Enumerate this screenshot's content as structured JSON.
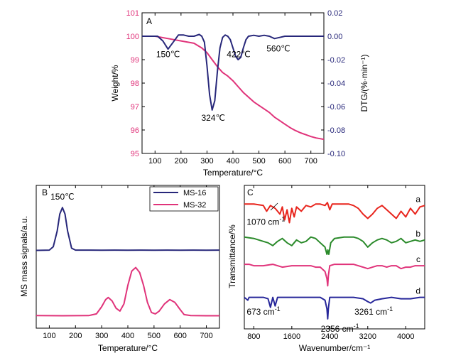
{
  "figure": {
    "colors": {
      "magenta": "#e0337a",
      "navy": "#27277a",
      "red": "#e8241c",
      "green": "#2a8a2a",
      "pink": "#e0337a",
      "blue": "#27279a",
      "axis": "#000000"
    }
  },
  "chart_data": [
    {
      "id": "A",
      "type": "line",
      "panel_label": "A",
      "xlabel": "Temperature/°C",
      "ylabel_left": "Weight/%",
      "ylabel_right": "DTG/(%·min⁻¹)",
      "xlim": [
        50,
        750
      ],
      "ylim_left": [
        95,
        101
      ],
      "ylim_right": [
        -0.1,
        0.02
      ],
      "xticks": [
        {
          "v": 100,
          "label": "100"
        },
        {
          "v": 200,
          "label": "200"
        },
        {
          "v": 300,
          "label": "300"
        },
        {
          "v": 400,
          "label": "400"
        },
        {
          "v": 500,
          "label": "500"
        },
        {
          "v": 600,
          "label": "600"
        },
        {
          "v": 700,
          "label": "700"
        }
      ],
      "yticks_left": [
        {
          "v": 95,
          "label": "95"
        },
        {
          "v": 96,
          "label": "96"
        },
        {
          "v": 97,
          "label": "97"
        },
        {
          "v": 98,
          "label": "98"
        },
        {
          "v": 99,
          "label": "99"
        },
        {
          "v": 100,
          "label": "100"
        },
        {
          "v": 101,
          "label": "101"
        }
      ],
      "yticks_right": [
        {
          "v": 0.02,
          "label": "0.02"
        },
        {
          "v": 0.0,
          "label": "0.00"
        },
        {
          "v": -0.02,
          "label": "-0.02"
        },
        {
          "v": -0.04,
          "label": "-0.04"
        },
        {
          "v": -0.06,
          "label": "-0.06"
        },
        {
          "v": -0.08,
          "label": "-0.08"
        },
        {
          "v": -0.1,
          "label": "-0.10"
        }
      ],
      "series": [
        {
          "axis": "left",
          "color": "#e0337a",
          "x": [
            50,
            100,
            150,
            200,
            250,
            280,
            300,
            320,
            340,
            360,
            380,
            400,
            420,
            440,
            460,
            480,
            500,
            520,
            540,
            560,
            580,
            600,
            620,
            640,
            660,
            680,
            700,
            720,
            750
          ],
          "y": [
            100.0,
            100.0,
            99.9,
            99.8,
            99.7,
            99.5,
            99.3,
            99.0,
            98.7,
            98.45,
            98.3,
            98.1,
            97.85,
            97.6,
            97.4,
            97.2,
            97.05,
            96.9,
            96.75,
            96.55,
            96.4,
            96.25,
            96.1,
            95.98,
            95.88,
            95.8,
            95.72,
            95.66,
            95.6
          ]
        },
        {
          "axis": "right",
          "color": "#27277a",
          "x": [
            50,
            80,
            110,
            130,
            150,
            170,
            190,
            210,
            230,
            250,
            270,
            280,
            290,
            300,
            310,
            320,
            330,
            340,
            350,
            360,
            370,
            380,
            390,
            400,
            410,
            420,
            430,
            440,
            450,
            460,
            480,
            500,
            520,
            540,
            560,
            580,
            600,
            640,
            680,
            720,
            750
          ],
          "y": [
            0.0,
            0.0,
            0.0,
            -0.004,
            -0.011,
            -0.005,
            0.001,
            0.001,
            0.0,
            0.0,
            0.0015,
            0.0,
            -0.005,
            -0.025,
            -0.05,
            -0.063,
            -0.055,
            -0.03,
            -0.01,
            -0.001,
            0.001,
            0.0,
            -0.003,
            -0.01,
            -0.017,
            -0.02,
            -0.018,
            -0.01,
            -0.003,
            0.0,
            0.0008,
            0.0,
            0.0008,
            0.0,
            -0.002,
            -0.001,
            0.0,
            0.0,
            0.0,
            0.0,
            0.0
          ]
        }
      ],
      "annotations": [
        {
          "text": "150℃",
          "x": 150,
          "y": -0.018
        },
        {
          "text": "324℃",
          "x": 324,
          "y": -0.072
        },
        {
          "text": "422℃",
          "x": 422,
          "y": -0.018
        },
        {
          "text": "560℃",
          "x": 575,
          "y": -0.013
        }
      ]
    },
    {
      "id": "B",
      "type": "line",
      "panel_label": "B",
      "xlabel": "Temperature/°C",
      "ylabel": "MS mass signals/a.u.",
      "xlim": [
        50,
        750
      ],
      "ylim": [
        0,
        1
      ],
      "xticks": [
        {
          "v": 100,
          "label": "100"
        },
        {
          "v": 200,
          "label": "200"
        },
        {
          "v": 300,
          "label": "300"
        },
        {
          "v": 400,
          "label": "400"
        },
        {
          "v": 500,
          "label": "500"
        },
        {
          "v": 600,
          "label": "600"
        },
        {
          "v": 700,
          "label": "700"
        }
      ],
      "legend": {
        "position": "top-right"
      },
      "series": [
        {
          "name": "MS-16",
          "color": "#27277a",
          "x": [
            50,
            100,
            115,
            130,
            140,
            150,
            160,
            170,
            185,
            200,
            250,
            300,
            350,
            400,
            450,
            500,
            550,
            600,
            650,
            700,
            750
          ],
          "y": [
            0.545,
            0.547,
            0.57,
            0.68,
            0.8,
            0.845,
            0.8,
            0.68,
            0.56,
            0.547,
            0.547,
            0.546,
            0.547,
            0.546,
            0.547,
            0.546,
            0.547,
            0.546,
            0.547,
            0.546,
            0.547
          ]
        },
        {
          "name": "MS-32",
          "color": "#e0337a",
          "x": [
            50,
            150,
            250,
            280,
            300,
            315,
            325,
            340,
            355,
            370,
            385,
            400,
            415,
            430,
            445,
            460,
            475,
            490,
            505,
            520,
            540,
            560,
            580,
            600,
            615,
            640,
            700,
            750
          ],
          "y": [
            0.088,
            0.087,
            0.088,
            0.1,
            0.15,
            0.2,
            0.215,
            0.19,
            0.14,
            0.12,
            0.17,
            0.3,
            0.4,
            0.425,
            0.39,
            0.3,
            0.18,
            0.11,
            0.1,
            0.12,
            0.17,
            0.2,
            0.18,
            0.13,
            0.095,
            0.088,
            0.087,
            0.087
          ]
        }
      ],
      "annotations": [
        {
          "text": "150℃",
          "x": 150,
          "y": 0.9
        }
      ]
    },
    {
      "id": "C",
      "type": "line",
      "panel_label": "C",
      "xlabel": "Wavenumber/cm⁻¹",
      "ylabel": "Transmittance/%",
      "xlim": [
        600,
        4400
      ],
      "ylim": [
        0,
        1
      ],
      "xticks": [
        {
          "v": 800,
          "label": "800"
        },
        {
          "v": 1600,
          "label": "1600"
        },
        {
          "v": 2400,
          "label": "2400"
        },
        {
          "v": 3200,
          "label": "3200"
        },
        {
          "v": 4000,
          "label": "4000"
        }
      ],
      "series": [
        {
          "name": "a",
          "color": "#e8241c",
          "x": [
            600,
            800,
            1000,
            1070,
            1150,
            1250,
            1350,
            1400,
            1450,
            1500,
            1550,
            1600,
            1650,
            1700,
            1800,
            1900,
            2000,
            2100,
            2200,
            2300,
            2350,
            2400,
            2450,
            2500,
            2600,
            2700,
            2800,
            2900,
            3000,
            3100,
            3200,
            3300,
            3400,
            3500,
            3600,
            3700,
            3800,
            3900,
            4000,
            4100,
            4200,
            4300,
            4400
          ],
          "y": [
            0.87,
            0.87,
            0.86,
            0.82,
            0.86,
            0.84,
            0.8,
            0.85,
            0.76,
            0.83,
            0.74,
            0.84,
            0.78,
            0.85,
            0.82,
            0.86,
            0.85,
            0.87,
            0.87,
            0.86,
            0.88,
            0.83,
            0.87,
            0.87,
            0.87,
            0.87,
            0.87,
            0.86,
            0.84,
            0.8,
            0.77,
            0.8,
            0.84,
            0.86,
            0.83,
            0.8,
            0.77,
            0.82,
            0.78,
            0.84,
            0.8,
            0.85,
            0.86
          ]
        },
        {
          "name": "b",
          "color": "#2a8a2a",
          "x": [
            600,
            800,
            1000,
            1100,
            1200,
            1300,
            1400,
            1500,
            1600,
            1700,
            1800,
            1900,
            2000,
            2100,
            2200,
            2300,
            2340,
            2360,
            2380,
            2420,
            2500,
            2700,
            2900,
            3000,
            3100,
            3200,
            3300,
            3400,
            3500,
            3600,
            3700,
            3800,
            3900,
            4000,
            4100,
            4200,
            4300,
            4400
          ],
          "y": [
            0.64,
            0.63,
            0.61,
            0.6,
            0.58,
            0.61,
            0.63,
            0.6,
            0.58,
            0.62,
            0.6,
            0.61,
            0.64,
            0.63,
            0.6,
            0.57,
            0.52,
            0.55,
            0.52,
            0.6,
            0.63,
            0.64,
            0.64,
            0.63,
            0.61,
            0.57,
            0.6,
            0.62,
            0.63,
            0.62,
            0.6,
            0.61,
            0.63,
            0.6,
            0.61,
            0.62,
            0.61,
            0.62
          ]
        },
        {
          "name": "c",
          "color": "#e0337a",
          "x": [
            600,
            700,
            800,
            1000,
            1200,
            1400,
            1600,
            1800,
            2000,
            2100,
            2200,
            2300,
            2340,
            2356,
            2370,
            2400,
            2500,
            2700,
            2900,
            3000,
            3100,
            3200,
            3300,
            3400,
            3500,
            3600,
            3700,
            3800,
            3900,
            4000,
            4100,
            4200,
            4300,
            4400
          ],
          "y": [
            0.45,
            0.45,
            0.44,
            0.44,
            0.45,
            0.43,
            0.44,
            0.44,
            0.44,
            0.43,
            0.43,
            0.4,
            0.35,
            0.3,
            0.37,
            0.44,
            0.45,
            0.45,
            0.45,
            0.44,
            0.43,
            0.42,
            0.43,
            0.44,
            0.44,
            0.43,
            0.44,
            0.44,
            0.42,
            0.43,
            0.43,
            0.44,
            0.44,
            0.44
          ]
        },
        {
          "name": "d",
          "color": "#27279a",
          "x": [
            600,
            673,
            700,
            800,
            900,
            1000,
            1100,
            1150,
            1200,
            1250,
            1300,
            1400,
            1600,
            1800,
            2000,
            2200,
            2300,
            2340,
            2356,
            2370,
            2400,
            2500,
            2700,
            2900,
            3100,
            3200,
            3261,
            3350,
            3500,
            3700,
            3900,
            4100,
            4300,
            4400
          ],
          "y": [
            0.22,
            0.2,
            0.22,
            0.22,
            0.22,
            0.22,
            0.21,
            0.15,
            0.22,
            0.16,
            0.22,
            0.22,
            0.22,
            0.22,
            0.22,
            0.22,
            0.2,
            0.14,
            0.07,
            0.14,
            0.22,
            0.22,
            0.22,
            0.22,
            0.21,
            0.19,
            0.18,
            0.2,
            0.21,
            0.22,
            0.21,
            0.21,
            0.22,
            0.22
          ]
        }
      ],
      "annotations": [
        {
          "text": "1070 cm",
          "sup": "-1",
          "x": 650,
          "y": 0.725
        },
        {
          "text": "673 cm",
          "sup": "-1",
          "x": 650,
          "y": 0.1
        },
        {
          "text": "2356 cm",
          "sup": "-1",
          "x": 2210,
          "y": -0.02
        },
        {
          "text": "3261 cm",
          "sup": "-1",
          "x": 2920,
          "y": 0.1
        }
      ]
    }
  ]
}
